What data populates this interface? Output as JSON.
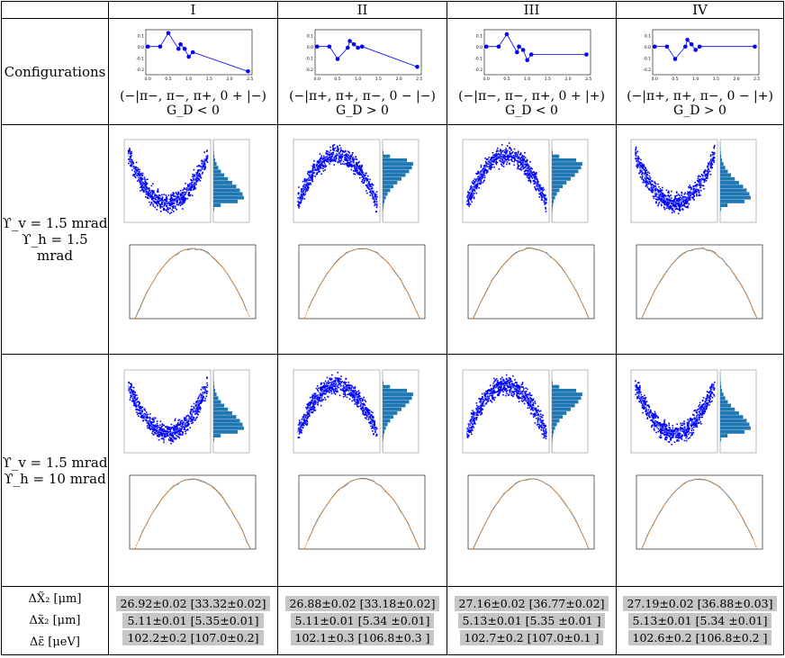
{
  "columns": [
    {
      "label": "I",
      "sign": "(−|π−, π−, π+, 0 + |−)",
      "gd": "G_D < 0",
      "dX2": "26.92±0.02 [33.32±0.02]",
      "dx2": "5.11±0.01 [5.35±0.01]",
      "de": "102.2±0.2 [107.0±0.2]"
    },
    {
      "label": "II",
      "sign": "(−|π+, π+, π−, 0 − |−)",
      "gd": "G_D > 0",
      "dX2": "26.88±0.02 [33.18±0.02]",
      "dx2": "5.11±0.01 [5.34 ±0.01]",
      "de": "102.1±0.3 [106.8±0.3 ]"
    },
    {
      "label": "III",
      "sign": "(−|π−, π−, π+, 0 + |+)",
      "gd": "G_D < 0",
      "dX2": "27.16±0.02 [36.77±0.02]",
      "dx2": "5.13±0.01 [5.35 ±0.01 ]",
      "de": "102.7±0.2 [107.0±0.1 ]"
    },
    {
      "label": "IV",
      "sign": "(−|π+, π+, π−, 0 − |+)",
      "gd": "G_D > 0",
      "dX2": "27.19±0.02 [36.88±0.03]",
      "dx2": "5.13±0.01 [5.34 ±0.01]",
      "de": "102.6±0.2 [106.8±0.2 ]"
    }
  ],
  "rows": {
    "configurations": "Configurations",
    "case1_v": "ϒ_v = 1.5 mrad",
    "case1_h": "ϒ_h = 1.5 mrad",
    "case2_v": "ϒ_v = 1.5 mrad",
    "case2_h": "ϒ_h = 10 mrad",
    "dX2_label": "ΔX̃₂ [μm]",
    "dx2_label": "Δx̃₂ [μm]",
    "de_label": "Δε̃ [μeV]"
  },
  "config_plots": [
    {
      "x": [
        0,
        0.3,
        0.5,
        0.75,
        0.8,
        0.9,
        1.0,
        1.1,
        2.45
      ],
      "y": [
        0,
        0,
        0.12,
        -0.02,
        0.02,
        -0.02,
        -0.09,
        -0.05,
        -0.22
      ],
      "path": [
        0,
        1,
        2,
        3,
        4,
        5,
        6,
        7,
        8
      ]
    },
    {
      "x": [
        0,
        0.3,
        0.5,
        0.75,
        0.8,
        0.9,
        1.0,
        1.1,
        2.45
      ],
      "y": [
        0,
        0,
        -0.11,
        -0.01,
        0.05,
        0.02,
        -0.01,
        0.0,
        -0.18
      ],
      "path": [
        0,
        1,
        2,
        3,
        4,
        5,
        6,
        7,
        8
      ]
    },
    {
      "x": [
        0,
        0.3,
        0.5,
        0.75,
        0.8,
        0.9,
        1.0,
        1.1,
        2.45
      ],
      "y": [
        0,
        0,
        0.11,
        -0.05,
        0.0,
        -0.03,
        -0.12,
        -0.07,
        -0.07
      ],
      "path": [
        0,
        1,
        2,
        3,
        4,
        5,
        6,
        7,
        8
      ]
    },
    {
      "x": [
        0,
        0.3,
        0.5,
        0.75,
        0.8,
        0.9,
        1.0,
        1.1,
        2.45
      ],
      "y": [
        0,
        0,
        -0.11,
        0.0,
        0.06,
        0.02,
        -0.03,
        0.0,
        0.0
      ],
      "path": [
        0,
        1,
        2,
        3,
        4,
        5,
        6,
        7,
        8
      ]
    }
  ],
  "config_axis": {
    "yticks": [
      "0.1",
      "0.0",
      "-0.1",
      "-0.2"
    ],
    "xticks": [
      "0.0",
      "0.5",
      "1.0",
      "1.5",
      "2.0",
      "2.5"
    ]
  },
  "phase_orient": [
    1,
    -1,
    -1,
    1
  ],
  "colors": {
    "point": "#0000ff",
    "hist": "#1f77b4",
    "fit": "#ff7f0e",
    "highlight": "#c6c6c6"
  }
}
